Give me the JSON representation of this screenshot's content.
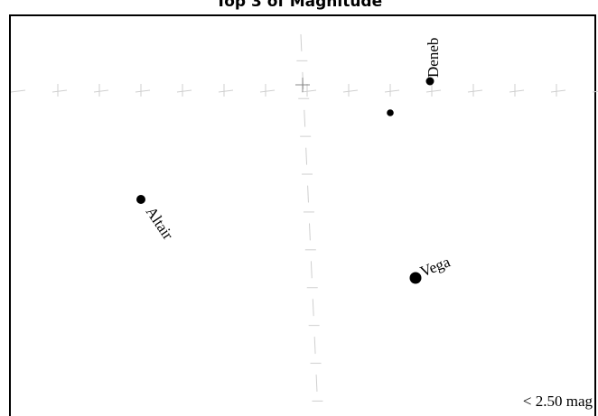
{
  "title": "Top 3 of Magnitude",
  "legend": {
    "limit_text": "< 2.50 mag"
  },
  "colors": {
    "stars": "#000000",
    "grid": "#cfcfcf",
    "grid_center": "#888888",
    "frame": "#000000"
  },
  "stars": [
    {
      "name": "Deneb",
      "label": "Deneb",
      "labeled": true
    },
    {
      "name": "unlabeled-star",
      "label": "",
      "labeled": false
    },
    {
      "name": "Altair",
      "label": "Altair",
      "labeled": true
    },
    {
      "name": "Vega",
      "label": "Vega",
      "labeled": true
    }
  ]
}
